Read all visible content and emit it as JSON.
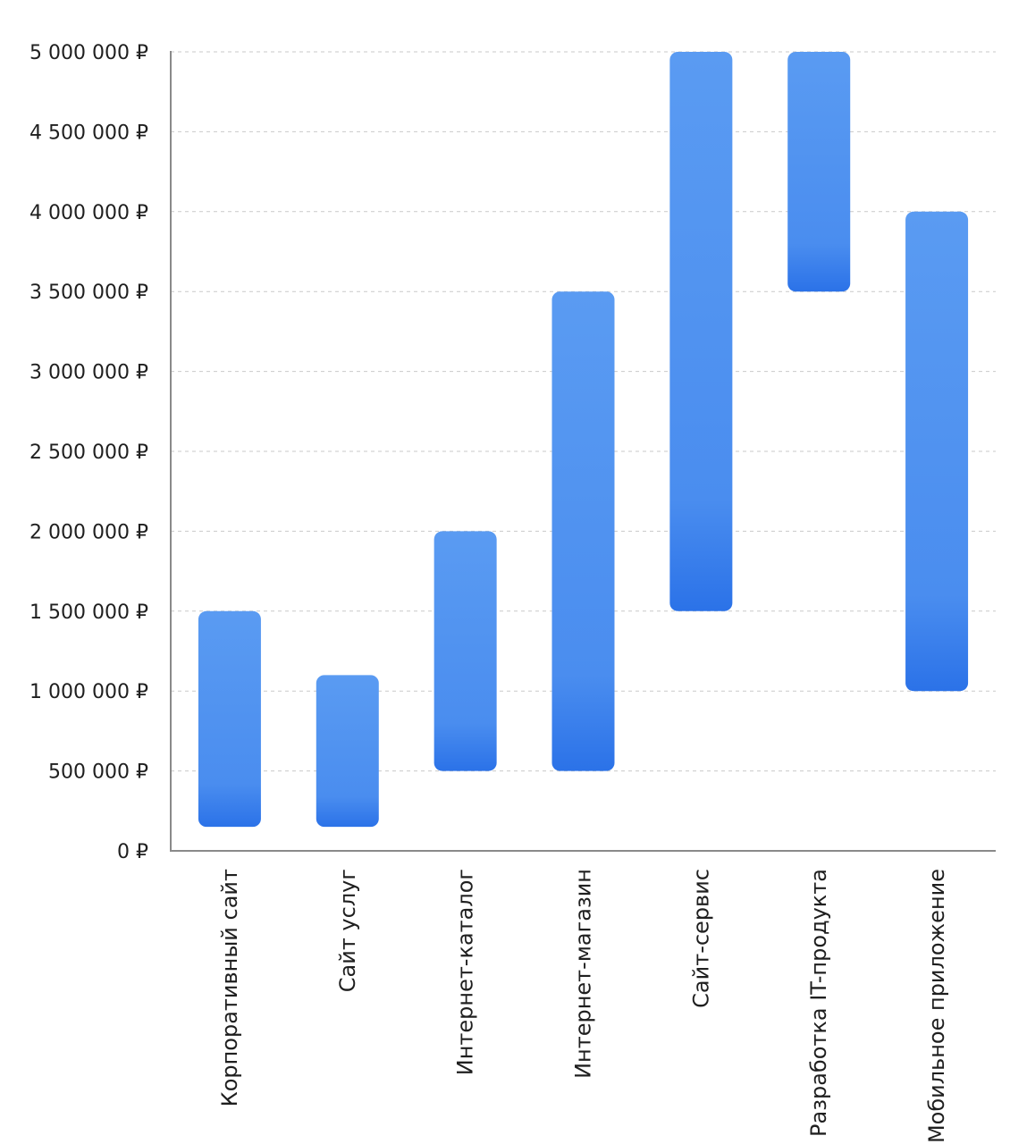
{
  "chart_data": {
    "type": "bar",
    "subtype": "floating-range",
    "title": "",
    "xlabel": "",
    "ylabel": "",
    "ylim": [
      0,
      5000000
    ],
    "y_ticks": [
      0,
      500000,
      1000000,
      1500000,
      2000000,
      2500000,
      3000000,
      3500000,
      4000000,
      4500000,
      5000000
    ],
    "y_tick_labels": [
      "0 ₽",
      "500 000 ₽",
      "1 000 000 ₽",
      "1 500 000 ₽",
      "2 000 000 ₽",
      "2 500 000 ₽",
      "3 000 000 ₽",
      "3 500 000 ₽",
      "4 000 000 ₽",
      "4 500 000 ₽",
      "5 000 000 ₽"
    ],
    "grid": true,
    "legend": "none",
    "colors": {
      "bar_top": "#5A9BF2",
      "bar_bottom": "#2B72E8"
    },
    "categories": [
      "Корпоративный сайт",
      "Сайт услуг",
      "Интернет-каталог",
      "Интернет-магазин",
      "Сайт-сервис",
      "Разработка IT-продукта",
      "Мобильное приложение"
    ],
    "ranges": [
      [
        150000,
        1500000
      ],
      [
        150000,
        1100000
      ],
      [
        500000,
        2000000
      ],
      [
        500000,
        3500000
      ],
      [
        1500000,
        5000000
      ],
      [
        3500000,
        5000000
      ],
      [
        1000000,
        4000000
      ]
    ]
  }
}
